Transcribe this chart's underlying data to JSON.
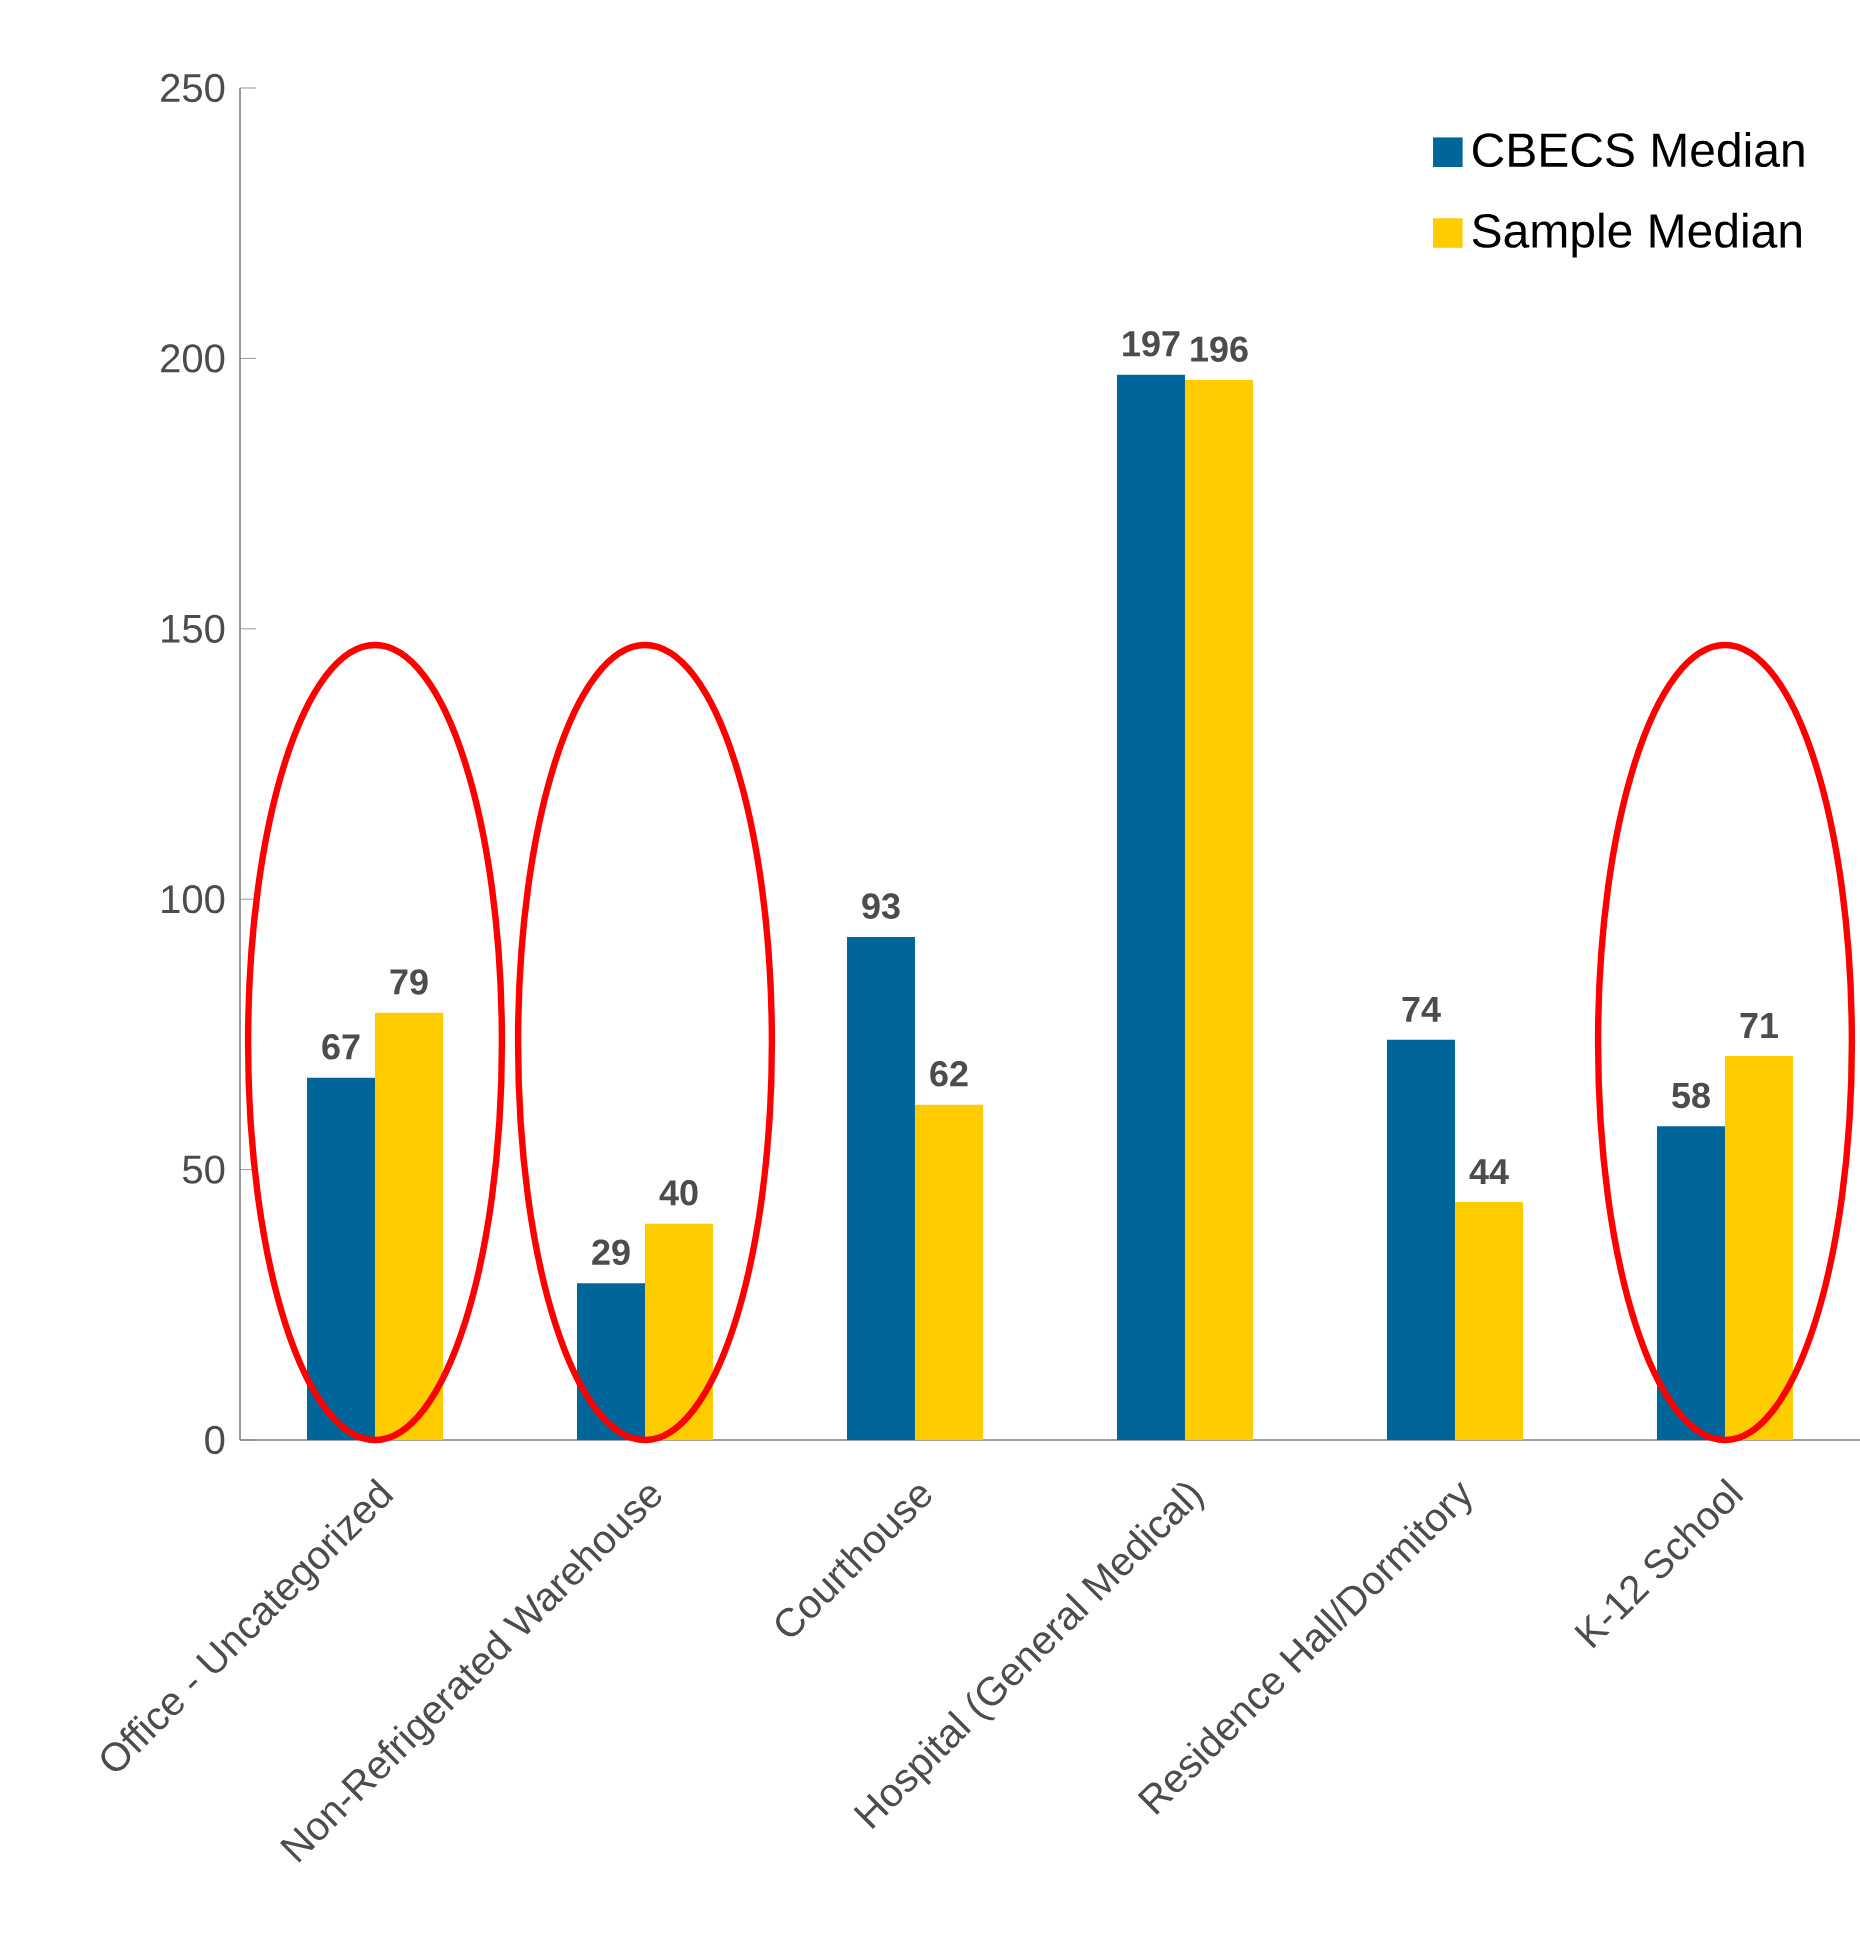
{
  "chart_data": {
    "type": "bar",
    "categories": [
      "Office - Uncategorized",
      "Non-Refrigerated Warehouse",
      "Courthouse",
      "Hospital (General Medical)",
      "Residence Hall/Dormitory",
      "K-12 School"
    ],
    "series": [
      {
        "name": "CBECS Median",
        "color": "#006699",
        "values": [
          67,
          29,
          93,
          197,
          74,
          58
        ]
      },
      {
        "name": "Sample Median",
        "color": "#ffcc00",
        "values": [
          79,
          40,
          62,
          196,
          44,
          71
        ]
      }
    ],
    "ylim": [
      0,
      250
    ],
    "yticks": [
      0,
      50,
      100,
      150,
      200,
      250
    ],
    "data_labels": true,
    "legend": "top right",
    "grid": false
  }
}
